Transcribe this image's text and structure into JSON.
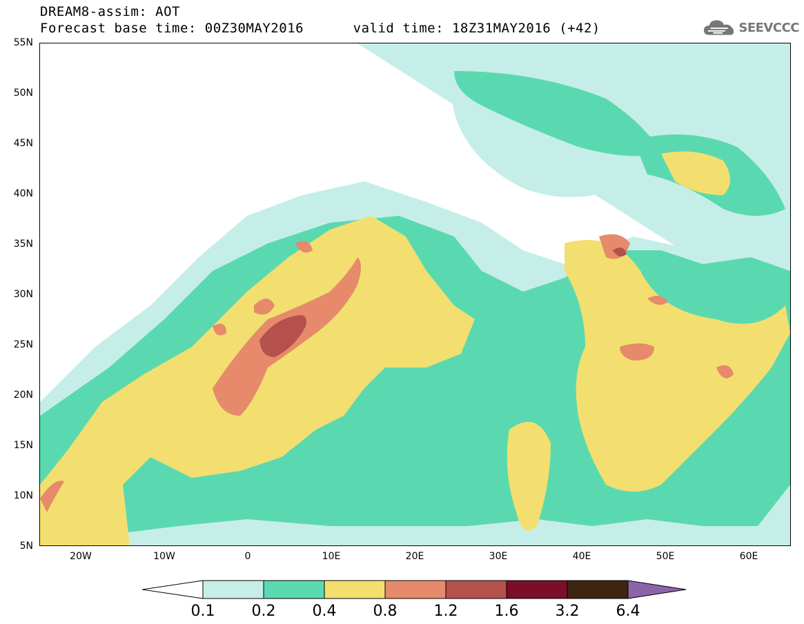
{
  "title": {
    "line1": "DREAM8-assim: AOT",
    "line2": "Forecast base time: 00Z30MAY2016      valid time: 18Z31MAY2016 (+42)"
  },
  "logo": {
    "text": "SEEVCCC",
    "icon": "cloud-icon"
  },
  "map": {
    "projection": "lat-lon",
    "lon_range": [
      -25,
      65
    ],
    "lat_range": [
      5,
      55
    ],
    "lat_labels": [
      "55N",
      "50N",
      "45N",
      "40N",
      "35N",
      "30N",
      "25N",
      "20N",
      "15N",
      "10N",
      "5N"
    ],
    "lon_labels": [
      "20W",
      "10W",
      "0",
      "10E",
      "20E",
      "30E",
      "40E",
      "50E",
      "60E"
    ]
  },
  "colorbar": {
    "levels": [
      "0.1",
      "0.2",
      "0.4",
      "0.8",
      "1.2",
      "1.6",
      "3.2",
      "6.4"
    ],
    "colors": [
      "#ffffff",
      "#c6eee8",
      "#5ad9b0",
      "#f2df6f",
      "#e68a6b",
      "#b5514c",
      "#7c0e28",
      "#3f2412",
      "#8b65a8"
    ]
  }
}
